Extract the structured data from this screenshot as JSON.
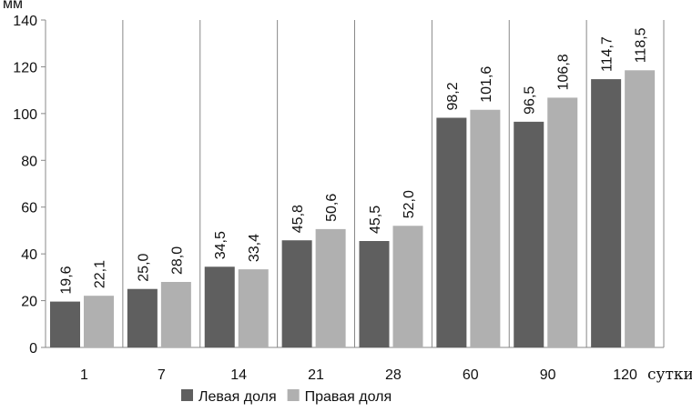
{
  "chart_data": {
    "type": "bar",
    "ylabel": "мм",
    "xlabel": "сутки",
    "ylim": [
      0,
      140
    ],
    "yticks": [
      0,
      20,
      40,
      60,
      80,
      100,
      120,
      140
    ],
    "categories": [
      "1",
      "7",
      "14",
      "21",
      "28",
      "60",
      "90",
      "120"
    ],
    "series": [
      {
        "name": "Левая доля",
        "values": [
          19.6,
          25.0,
          34.5,
          45.8,
          45.5,
          98.2,
          96.5,
          114.7
        ],
        "labels": [
          "19,6",
          "25,0",
          "34,5",
          "45,8",
          "45,5",
          "98,2",
          "96,5",
          "114,7"
        ],
        "color": "#5f5f5f"
      },
      {
        "name": "Правая доля",
        "values": [
          22.1,
          28.0,
          33.4,
          50.6,
          52.0,
          101.6,
          106.8,
          118.5
        ],
        "labels": [
          "22,1",
          "28,0",
          "33,4",
          "50,6",
          "52,0",
          "101,6",
          "106,8",
          "118,5"
        ],
        "color": "#b0b0b0"
      }
    ],
    "legend_position": "bottom",
    "grid": false
  }
}
